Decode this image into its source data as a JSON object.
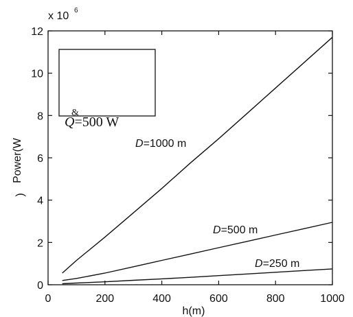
{
  "chart_data": {
    "type": "line",
    "xlabel": "h(m)",
    "ylabel": "Power(W",
    "ylabel_cont": ")",
    "exponent_label": "x 10",
    "exponent_power": "6",
    "xlim": [
      0,
      1000
    ],
    "ylim": [
      0,
      12
    ],
    "xticks": [
      0,
      200,
      400,
      600,
      800,
      1000
    ],
    "yticks": [
      0,
      2,
      4,
      6,
      8,
      10,
      12
    ],
    "x_tick_labels": [
      "0",
      "200",
      "400",
      "600",
      "800",
      "1000"
    ],
    "y_tick_labels": [
      "0",
      "2",
      "4",
      "6",
      "8",
      "10",
      "12"
    ],
    "grid": false,
    "legend_box": {
      "text": "Q=500 W",
      "symbol": "Q",
      "rest": "=500 W",
      "mark": "&"
    },
    "series": [
      {
        "name": "D=1000 m",
        "label_italic": "D",
        "label_rest": "=1000 m",
        "color": "#111111",
        "x": [
          50,
          100,
          200,
          300,
          400,
          500,
          600,
          700,
          800,
          900,
          1000
        ],
        "y": [
          0.55,
          1.15,
          2.25,
          3.4,
          4.55,
          5.75,
          6.9,
          8.1,
          9.3,
          10.5,
          11.7
        ]
      },
      {
        "name": "D=500 m",
        "label_italic": "D",
        "label_rest": "=500 m",
        "color": "#111111",
        "x": [
          50,
          100,
          200,
          300,
          400,
          500,
          600,
          700,
          800,
          900,
          1000
        ],
        "y": [
          0.2,
          0.3,
          0.55,
          0.85,
          1.15,
          1.45,
          1.75,
          2.05,
          2.35,
          2.65,
          2.95
        ]
      },
      {
        "name": "D=250 m",
        "label_italic": "D",
        "label_rest": "=250 m",
        "color": "#111111",
        "x": [
          50,
          100,
          200,
          300,
          400,
          500,
          600,
          700,
          800,
          900,
          1000
        ],
        "y": [
          0.05,
          0.08,
          0.14,
          0.21,
          0.28,
          0.35,
          0.43,
          0.51,
          0.59,
          0.67,
          0.75
        ]
      }
    ]
  }
}
